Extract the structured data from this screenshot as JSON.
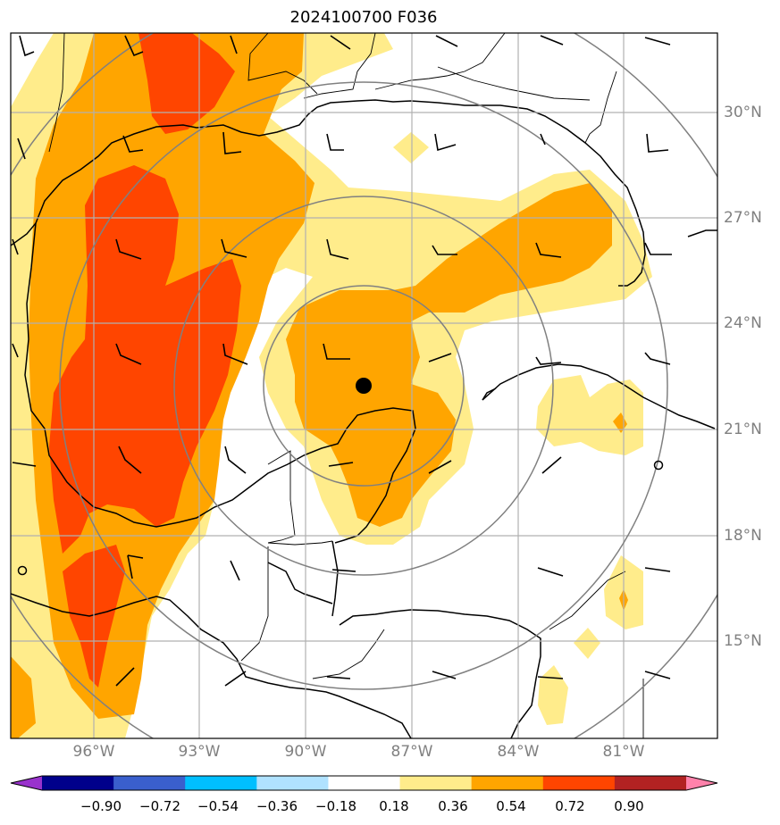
{
  "title": "2024100700 F036",
  "latitude_labels": [
    "30°N",
    "27°N",
    "24°N",
    "21°N",
    "18°N",
    "15°N"
  ],
  "longitude_labels": [
    "96°W",
    "93°W",
    "90°W",
    "87°W",
    "84°W",
    "81°W"
  ],
  "colorbar": {
    "ticks": [
      "−0.90",
      "−0.72",
      "−0.54",
      "−0.36",
      "−0.18",
      "0.18",
      "0.36",
      "0.54",
      "0.72",
      "0.90"
    ],
    "colors": [
      "#9932cc",
      "#00008b",
      "#3a5fcd",
      "#00bfff",
      "#b0e2ff",
      "#ffffff",
      "#ffec8b",
      "#ffa500",
      "#ff4500",
      "#b22222",
      "#ff82ab"
    ]
  },
  "storm_center_marker": "filled-circle",
  "colors": {
    "grid": "#b0b0b0",
    "range_rings": "#808080",
    "coastline": "#000000",
    "tick_label": "#808080"
  }
}
